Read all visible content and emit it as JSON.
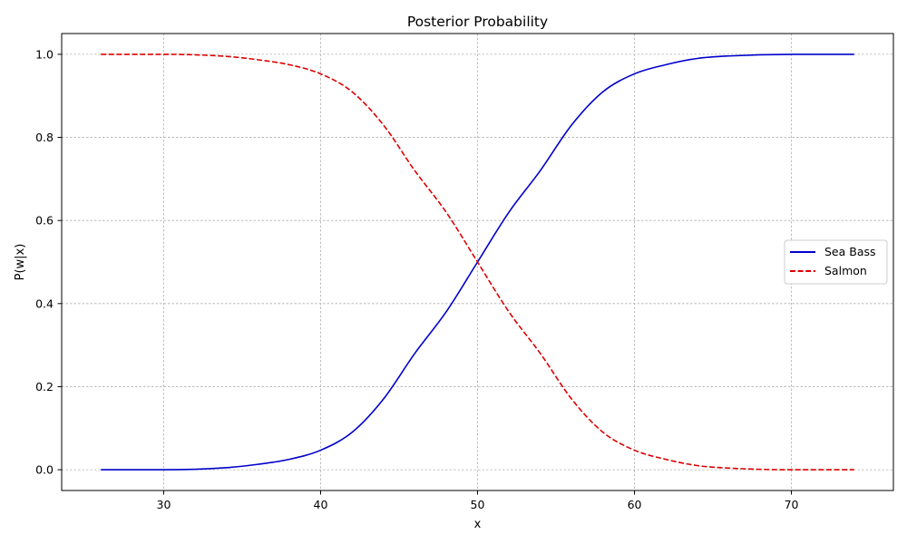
{
  "chart_data": {
    "type": "line",
    "title": "Posterior Probability",
    "xlabel": "x",
    "ylabel": "P(w|x)",
    "xlim": [
      23.5,
      76.5
    ],
    "ylim": [
      -0.05,
      1.05
    ],
    "x_ticks": [
      30,
      40,
      50,
      60,
      70
    ],
    "y_ticks": [
      0.0,
      0.2,
      0.4,
      0.6,
      0.8,
      1.0
    ],
    "grid": true,
    "legend_position": "center-right",
    "series": [
      {
        "name": "Sea Bass",
        "color": "#0000cc",
        "line_style": "solid",
        "x": [
          26,
          30,
          34,
          36,
          38,
          40,
          42,
          44,
          46,
          48,
          50,
          52,
          54,
          56,
          58,
          60,
          62,
          64,
          66,
          70,
          74
        ],
        "y": [
          0.0,
          0.0,
          0.005,
          0.013,
          0.025,
          0.047,
          0.09,
          0.17,
          0.28,
          0.38,
          0.5,
          0.62,
          0.72,
          0.83,
          0.91,
          0.953,
          0.975,
          0.99,
          0.996,
          1.0,
          1.0
        ]
      },
      {
        "name": "Salmon",
        "color": "#dd0000",
        "line_style": "dashed",
        "x": [
          26,
          30,
          34,
          36,
          38,
          40,
          42,
          44,
          46,
          48,
          50,
          52,
          54,
          56,
          58,
          60,
          62,
          64,
          66,
          70,
          74
        ],
        "y": [
          1.0,
          1.0,
          0.995,
          0.987,
          0.975,
          0.953,
          0.91,
          0.83,
          0.72,
          0.62,
          0.5,
          0.38,
          0.28,
          0.17,
          0.09,
          0.047,
          0.025,
          0.01,
          0.004,
          0.0,
          0.0
        ]
      }
    ]
  }
}
